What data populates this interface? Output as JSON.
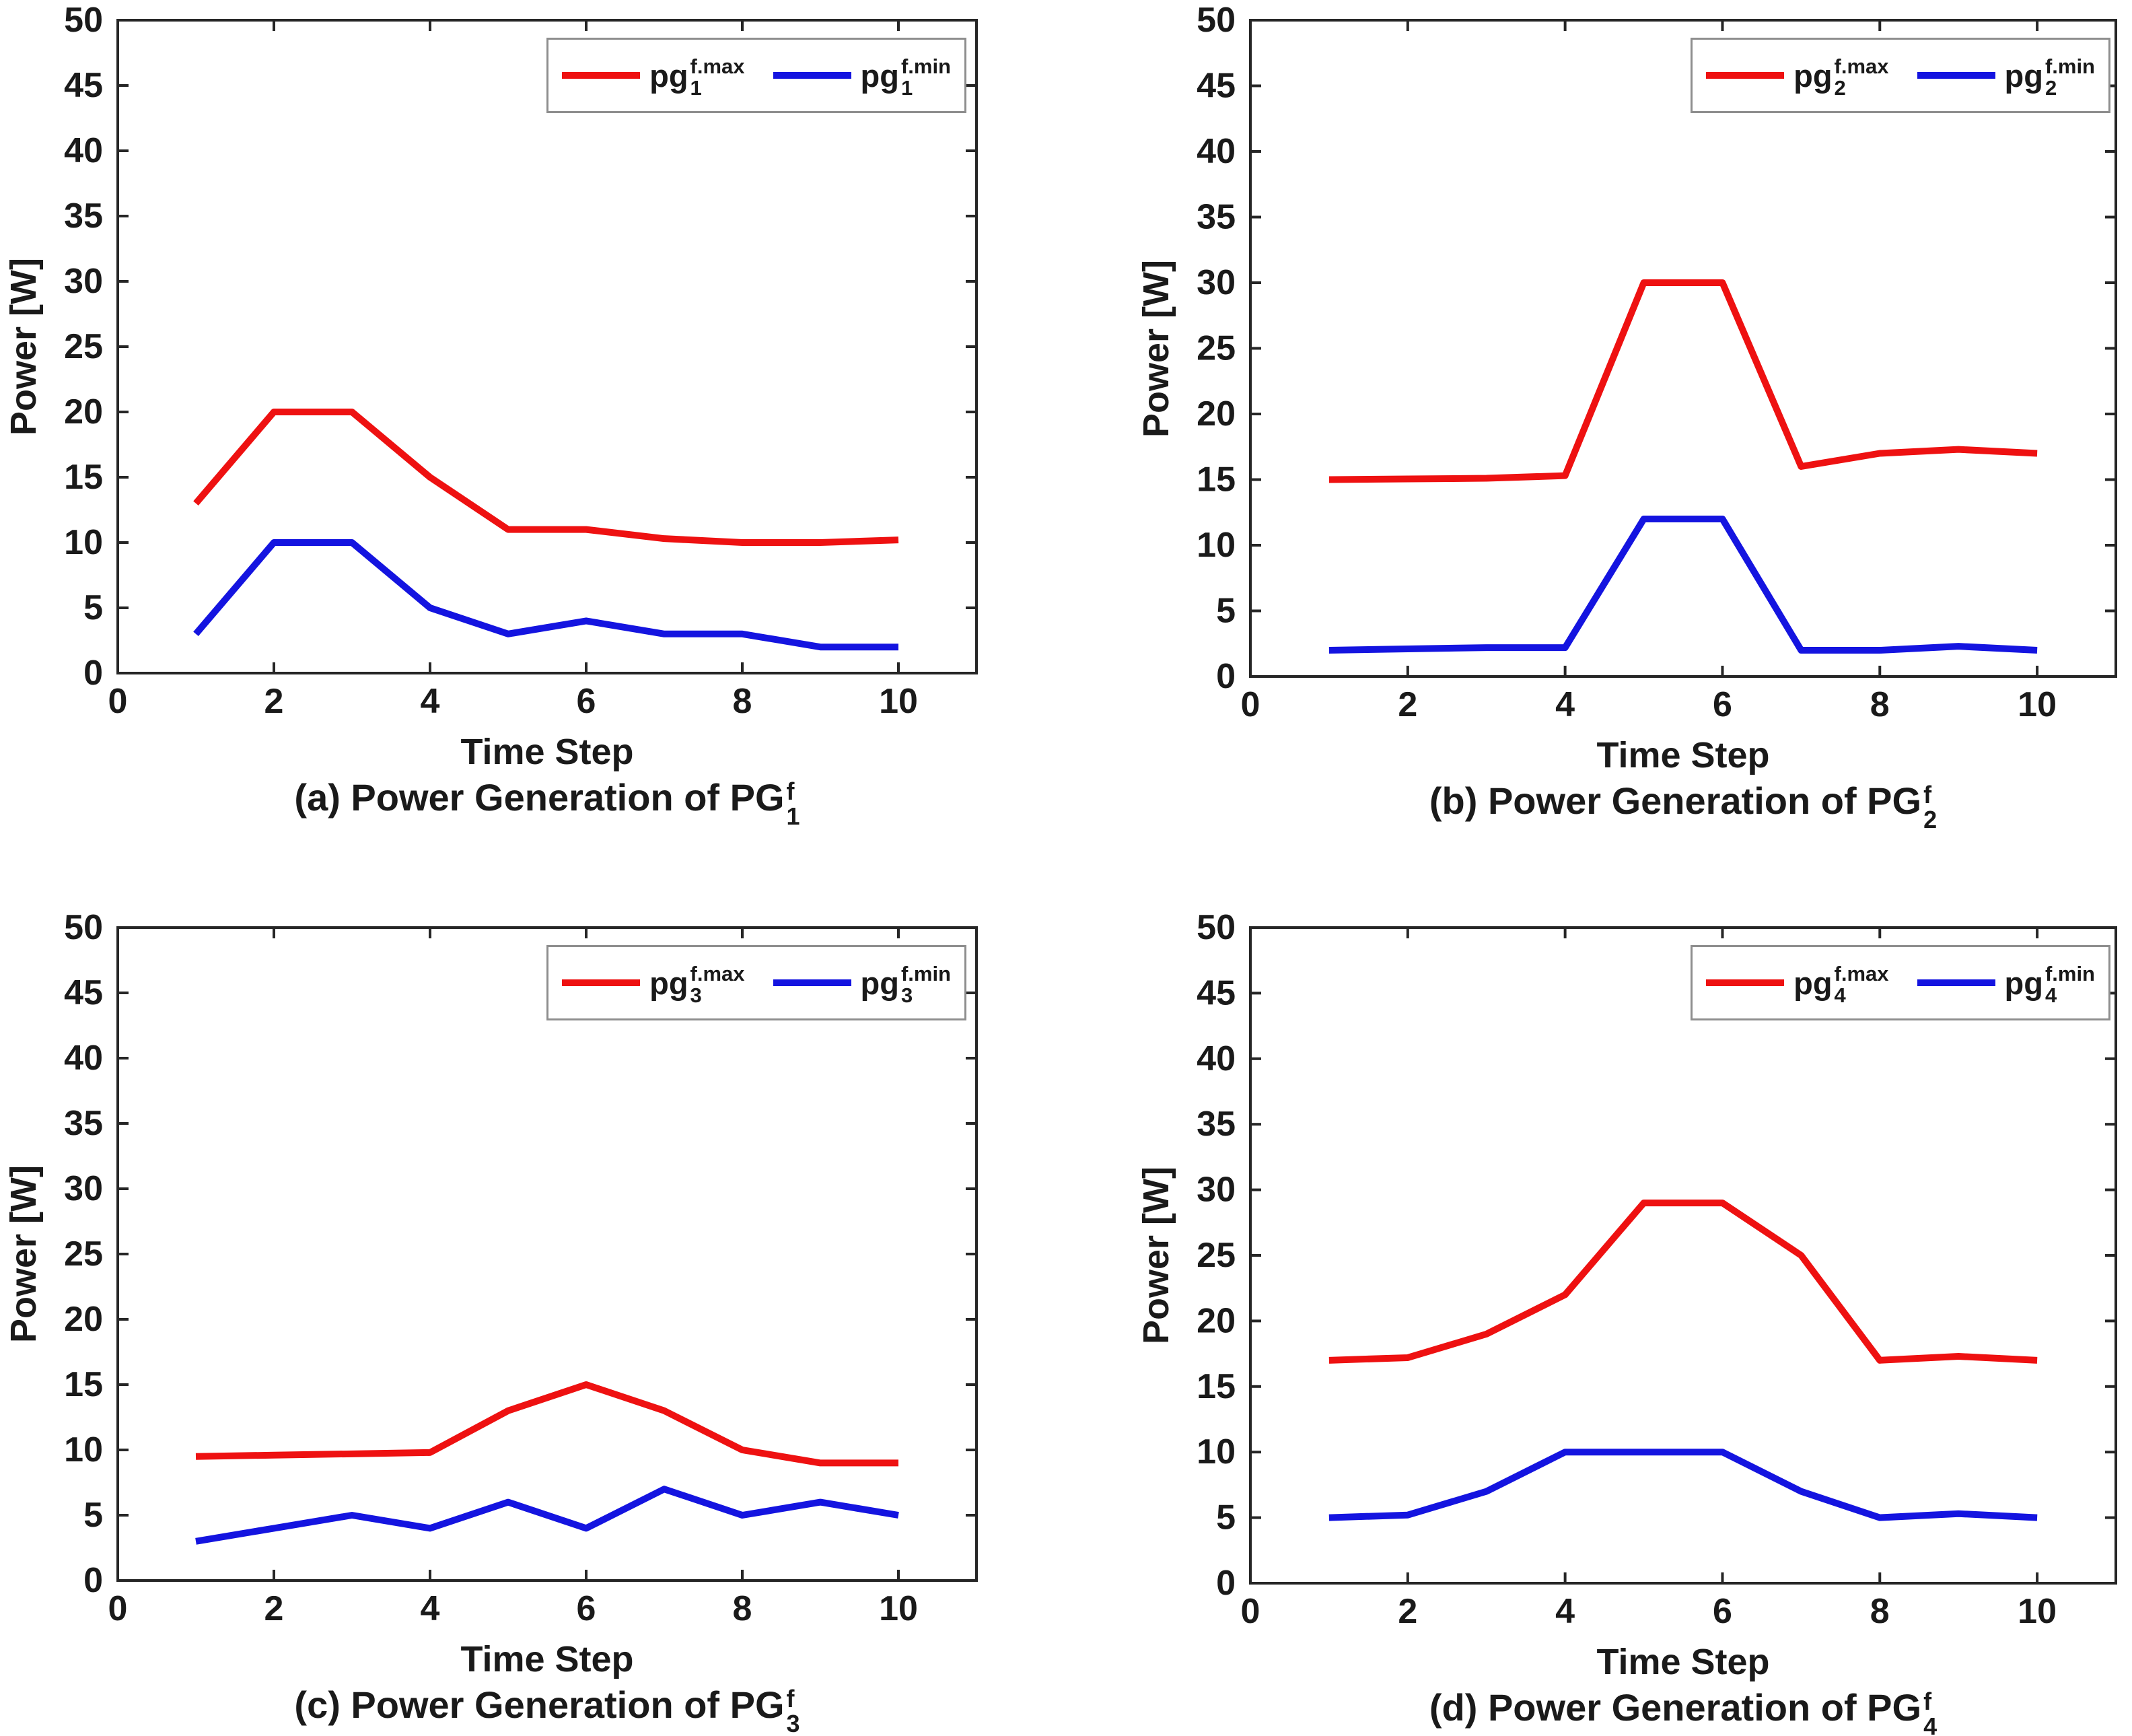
{
  "figure": {
    "background": "#ffffff",
    "axis_color": "#262626",
    "text_color": "#1a1a1a",
    "legend_border_color": "#8e8e8e",
    "series_colors": {
      "max": "#ee1111",
      "min": "#1414e0"
    }
  },
  "chart_data": [
    {
      "type": "line",
      "panel": "a",
      "caption_prefix": "(a) Power Generation of ",
      "caption_base": "PG",
      "caption_sup": "f",
      "caption_sub": "1",
      "xlabel": "Time Step",
      "ylabel": "Power [W]",
      "xlim": [
        0,
        11
      ],
      "ylim": [
        0,
        50
      ],
      "xticks": [
        0,
        2,
        4,
        6,
        8,
        10
      ],
      "yticks": [
        0,
        5,
        10,
        15,
        20,
        25,
        30,
        35,
        40,
        45,
        50
      ],
      "grid": false,
      "legend_position": "top-right",
      "x": [
        1,
        2,
        3,
        4,
        5,
        6,
        7,
        8,
        9,
        10
      ],
      "series": [
        {
          "legend_base": "pg",
          "legend_sub": "1",
          "legend_sup": "f.max",
          "color": "#ee1111",
          "values": [
            13,
            20,
            20,
            15,
            11,
            11,
            10.3,
            10,
            10,
            10.2
          ]
        },
        {
          "legend_base": "pg",
          "legend_sub": "1",
          "legend_sup": "f.min",
          "color": "#1414e0",
          "values": [
            3,
            10,
            10,
            5,
            3,
            4,
            3,
            3,
            2,
            2
          ]
        }
      ]
    },
    {
      "type": "line",
      "panel": "b",
      "caption_prefix": "(b) Power Generation of ",
      "caption_base": "PG",
      "caption_sup": "f",
      "caption_sub": "2",
      "xlabel": "Time Step",
      "ylabel": "Power [W]",
      "xlim": [
        0,
        11
      ],
      "ylim": [
        0,
        50
      ],
      "xticks": [
        0,
        2,
        4,
        6,
        8,
        10
      ],
      "yticks": [
        0,
        5,
        10,
        15,
        20,
        25,
        30,
        35,
        40,
        45,
        50
      ],
      "grid": false,
      "legend_position": "top-right",
      "x": [
        1,
        2,
        3,
        4,
        5,
        6,
        7,
        8,
        9,
        10
      ],
      "series": [
        {
          "legend_base": "pg",
          "legend_sub": "2",
          "legend_sup": "f.max",
          "color": "#ee1111",
          "values": [
            15,
            15.05,
            15.1,
            15.3,
            30,
            30,
            16,
            17,
            17.3,
            17
          ]
        },
        {
          "legend_base": "pg",
          "legend_sub": "2",
          "legend_sup": "f.min",
          "color": "#1414e0",
          "values": [
            2,
            2.1,
            2.2,
            2.2,
            12,
            12,
            2,
            2,
            2.3,
            2
          ]
        }
      ]
    },
    {
      "type": "line",
      "panel": "c",
      "caption_prefix": "(c) Power Generation of ",
      "caption_base": "PG",
      "caption_sup": "f",
      "caption_sub": "3",
      "xlabel": "Time Step",
      "ylabel": "Power [W]",
      "xlim": [
        0,
        11
      ],
      "ylim": [
        0,
        50
      ],
      "xticks": [
        0,
        2,
        4,
        6,
        8,
        10
      ],
      "yticks": [
        0,
        5,
        10,
        15,
        20,
        25,
        30,
        35,
        40,
        45,
        50
      ],
      "grid": false,
      "legend_position": "top-right",
      "x": [
        1,
        2,
        3,
        4,
        5,
        6,
        7,
        8,
        9,
        10
      ],
      "series": [
        {
          "legend_base": "pg",
          "legend_sub": "3",
          "legend_sup": "f.max",
          "color": "#ee1111",
          "values": [
            9.5,
            9.6,
            9.7,
            9.8,
            13,
            15,
            13,
            10,
            9,
            9
          ]
        },
        {
          "legend_base": "pg",
          "legend_sub": "3",
          "legend_sup": "f.min",
          "color": "#1414e0",
          "values": [
            3,
            4,
            5,
            4,
            6,
            4,
            7,
            5,
            6,
            5
          ]
        }
      ]
    },
    {
      "type": "line",
      "panel": "d",
      "caption_prefix": "(d) Power Generation of ",
      "caption_base": "PG",
      "caption_sup": "f",
      "caption_sub": "4",
      "xlabel": "Time Step",
      "ylabel": "Power [W]",
      "xlim": [
        0,
        11
      ],
      "ylim": [
        0,
        50
      ],
      "xticks": [
        0,
        2,
        4,
        6,
        8,
        10
      ],
      "yticks": [
        0,
        5,
        10,
        15,
        20,
        25,
        30,
        35,
        40,
        45,
        50
      ],
      "grid": false,
      "legend_position": "top-right",
      "x": [
        1,
        2,
        3,
        4,
        5,
        6,
        7,
        8,
        9,
        10
      ],
      "series": [
        {
          "legend_base": "pg",
          "legend_sub": "4",
          "legend_sup": "f.max",
          "color": "#ee1111",
          "values": [
            17,
            17.2,
            19,
            22,
            29,
            29,
            25,
            17,
            17.3,
            17
          ]
        },
        {
          "legend_base": "pg",
          "legend_sub": "4",
          "legend_sup": "f.min",
          "color": "#1414e0",
          "values": [
            5,
            5.2,
            7,
            10,
            10,
            10,
            7,
            5,
            5.3,
            5
          ]
        }
      ]
    }
  ]
}
